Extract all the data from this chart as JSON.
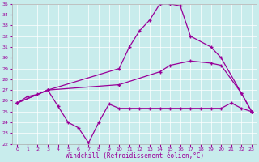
{
  "xlabel": "Windchill (Refroidissement éolien,°C)",
  "xlim": [
    -0.5,
    23.5
  ],
  "ylim": [
    22,
    35
  ],
  "yticks": [
    22,
    23,
    24,
    25,
    26,
    27,
    28,
    29,
    30,
    31,
    32,
    33,
    34,
    35
  ],
  "xticks": [
    0,
    1,
    2,
    3,
    4,
    5,
    6,
    7,
    8,
    9,
    10,
    11,
    12,
    13,
    14,
    15,
    16,
    17,
    18,
    19,
    20,
    21,
    22,
    23
  ],
  "bg_color": "#c8ecec",
  "line_color": "#990099",
  "curve1_x": [
    0,
    1,
    2,
    3,
    4,
    5,
    6,
    7,
    8,
    9,
    10,
    11,
    12,
    13,
    14,
    15,
    16,
    17,
    18,
    19,
    20,
    21,
    22,
    23
  ],
  "curve1_y": [
    25.8,
    26.4,
    26.6,
    27.0,
    25.5,
    24.0,
    23.5,
    22.1,
    24.0,
    25.7,
    25.3,
    25.3,
    25.3,
    25.3,
    25.3,
    25.3,
    25.3,
    25.3,
    25.3,
    25.3,
    25.3,
    25.8,
    25.3,
    25.0
  ],
  "curve2_x": [
    0,
    3,
    10,
    11,
    12,
    13,
    14,
    15,
    16,
    17,
    19,
    20,
    22,
    23
  ],
  "curve2_y": [
    25.8,
    27.0,
    29.0,
    31.0,
    32.5,
    33.5,
    35.0,
    35.0,
    34.8,
    32.0,
    31.0,
    30.0,
    26.7,
    25.0
  ],
  "curve3_x": [
    0,
    3,
    10,
    14,
    15,
    17,
    19,
    20,
    22,
    23
  ],
  "curve3_y": [
    25.8,
    27.0,
    27.5,
    28.7,
    29.3,
    29.7,
    29.5,
    29.3,
    26.7,
    25.0
  ]
}
